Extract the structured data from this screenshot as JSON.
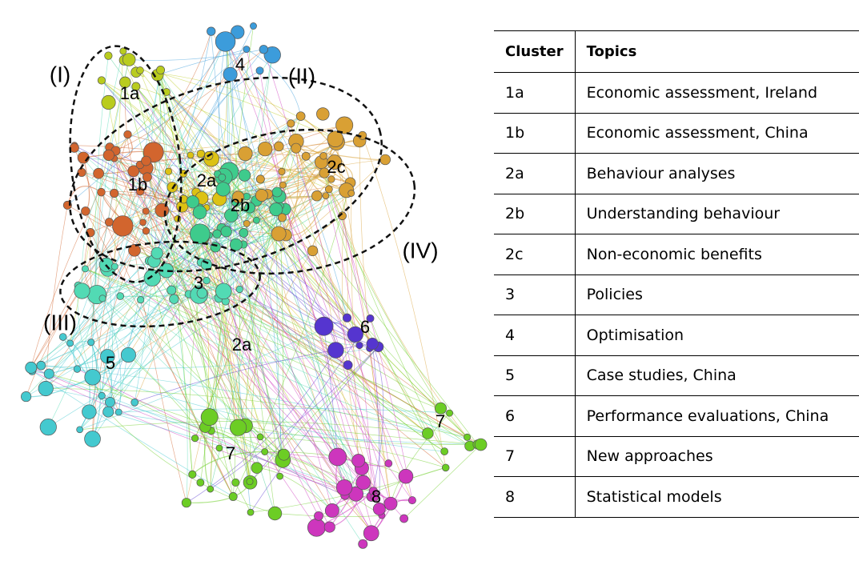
{
  "network": {
    "labels": [
      "(I)",
      "(II)",
      "(III)",
      "(IV)",
      "1a",
      "1b",
      "2a",
      "2b",
      "2c",
      "3",
      "4",
      "5",
      "6",
      "7",
      "7",
      "8",
      "2a"
    ]
  },
  "table": {
    "header": [
      "Cluster",
      "Topics"
    ],
    "rows": [
      [
        "1a",
        "Economic assessment, Ireland"
      ],
      [
        "1b",
        "Economic assessment, China"
      ],
      [
        "2a",
        "Behaviour analyses"
      ],
      [
        "2b",
        "Understanding behaviour"
      ],
      [
        "2c",
        "Non-economic benefits"
      ],
      [
        "3",
        "Policies"
      ],
      [
        "4",
        "Optimisation"
      ],
      [
        "5",
        "Case studies, China"
      ],
      [
        "6",
        "Performance evaluations, China"
      ],
      [
        "7",
        "New approaches"
      ],
      [
        "8",
        "Statistical models"
      ]
    ]
  }
}
